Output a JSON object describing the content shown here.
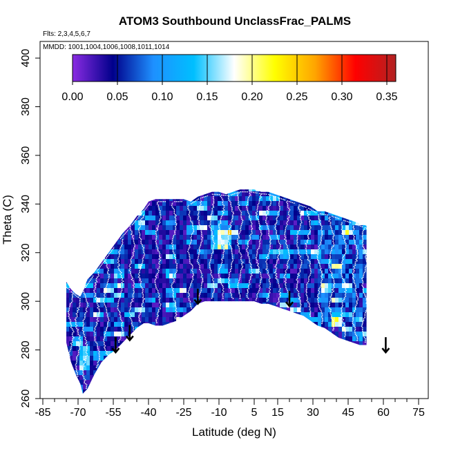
{
  "chart_data": {
    "type": "heatmap",
    "title": "ATOM3 Southbound UnclassFrac_PALMS",
    "annotations": [
      "Flts: 2,3,4,5,6,7",
      "MMDD: 1001,1004,1006,1008,1011,1014"
    ],
    "xlabel": "Latitude (deg N)",
    "ylabel": "Theta (C)",
    "xlim": [
      -85,
      85
    ],
    "ylim": [
      260,
      404
    ],
    "x_ticks": [
      -85,
      -70,
      -55,
      -40,
      -25,
      -10,
      5,
      15,
      30,
      45,
      60,
      75
    ],
    "x_tick_labels": [
      "-85",
      "-70",
      "-55",
      "-40",
      "-25",
      "-10",
      "5",
      "15",
      "30",
      "45",
      "60",
      "75"
    ],
    "y_ticks": [
      260,
      280,
      300,
      320,
      340,
      360,
      380,
      400
    ],
    "y_tick_labels": [
      "260",
      "280",
      "300",
      "320",
      "340",
      "360",
      "380",
      "400"
    ],
    "colorbar": {
      "min": 0.0,
      "max": 0.36,
      "ticks": [
        0.0,
        0.05,
        0.1,
        0.15,
        0.2,
        0.25,
        0.3,
        0.35
      ],
      "tick_labels": [
        "0.00",
        "0.05",
        "0.10",
        "0.15",
        "0.20",
        "0.25",
        "0.30",
        "0.35"
      ],
      "colors": [
        "#8a2be2",
        "#00008b",
        "#1e90ff",
        "#00bfff",
        "#ffffff",
        "#ffff00",
        "#ffa500",
        "#ff0000",
        "#b22222"
      ]
    },
    "envelope": {
      "lat": [
        -75,
        -73,
        -71,
        -69,
        -68,
        -66,
        -63,
        -60,
        -57,
        -54,
        -51,
        -48,
        -45,
        -42,
        -40,
        -37,
        -34,
        -31,
        -28,
        -25,
        -22,
        -19,
        -16,
        -13,
        -10,
        -7,
        -4,
        -1,
        2,
        5,
        8,
        11,
        14,
        17,
        20,
        23,
        26,
        29,
        32,
        35,
        38,
        41,
        44,
        47,
        50,
        53,
        55
      ],
      "theta_top": [
        308,
        305,
        303,
        302,
        304,
        309,
        312,
        316,
        320,
        324,
        328,
        331,
        335,
        338,
        341,
        342,
        342,
        342,
        342,
        342,
        341,
        343,
        344,
        345,
        345,
        344,
        345,
        346,
        346,
        346,
        345,
        345,
        344,
        343,
        342,
        341,
        340,
        339,
        337,
        337,
        336,
        335,
        334,
        333,
        332,
        331,
        330
      ],
      "theta_bottom": [
        283,
        275,
        270,
        266,
        262,
        264,
        270,
        275,
        278,
        280,
        283,
        286,
        289,
        291,
        291,
        290,
        290,
        291,
        292,
        294,
        296,
        299,
        300,
        300,
        300,
        300,
        300,
        300,
        300,
        300,
        299,
        299,
        298,
        297,
        296,
        295,
        294,
        292,
        290,
        289,
        287,
        285,
        284,
        283,
        282,
        282,
        282
      ]
    },
    "flight_tracks_color": "#ffffff",
    "arrows": [
      {
        "lat": -54,
        "theta": 279
      },
      {
        "lat": -48,
        "theta": 284
      },
      {
        "lat": -19,
        "theta": 299
      },
      {
        "lat": 20,
        "theta": 298
      },
      {
        "lat": 61,
        "theta": 279
      }
    ]
  }
}
